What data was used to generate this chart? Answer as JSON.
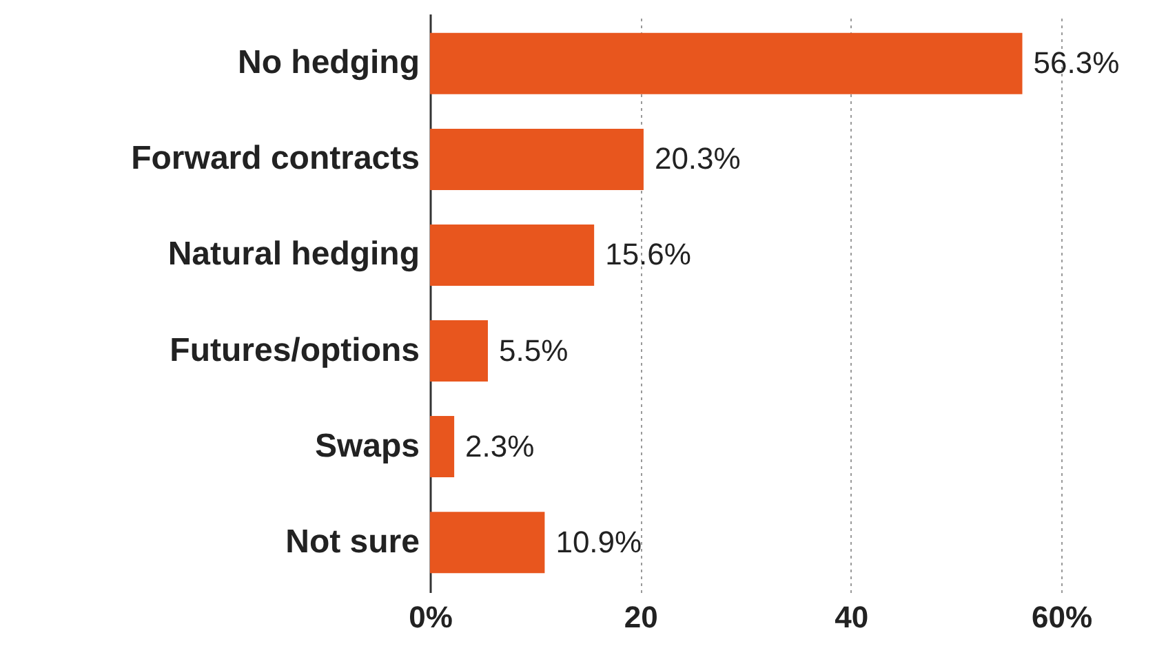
{
  "chart_data": {
    "type": "bar",
    "orientation": "horizontal",
    "categories": [
      "No hedging",
      "Forward contracts",
      "Natural hedging",
      "Futures/options",
      "Swaps",
      "Not sure"
    ],
    "values": [
      56.3,
      20.3,
      15.6,
      5.5,
      2.3,
      10.9
    ],
    "value_labels": [
      "56.3%",
      "20.3%",
      "15.6%",
      "5.5%",
      "2.3%",
      "10.9%"
    ],
    "color": "#e8561e",
    "xlim": [
      0,
      60
    ],
    "xticks": [
      {
        "value": 0,
        "label": "0%"
      },
      20,
      40,
      {
        "value": 60,
        "label": "60%"
      }
    ],
    "grid": "x"
  }
}
